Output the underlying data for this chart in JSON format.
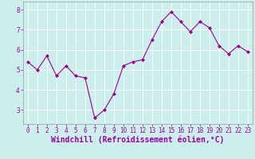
{
  "x": [
    0,
    1,
    2,
    3,
    4,
    5,
    6,
    7,
    8,
    9,
    10,
    11,
    12,
    13,
    14,
    15,
    16,
    17,
    18,
    19,
    20,
    21,
    22,
    23
  ],
  "y": [
    5.4,
    5.0,
    5.7,
    4.7,
    5.2,
    4.7,
    4.6,
    2.6,
    3.0,
    3.8,
    5.2,
    5.4,
    5.5,
    6.5,
    7.4,
    7.9,
    7.4,
    6.9,
    7.4,
    7.1,
    6.2,
    5.8,
    6.2,
    5.9
  ],
  "line_color": "#990099",
  "marker": "D",
  "marker_size": 2,
  "bg_color": "#cceeed",
  "grid_color": "#ffffff",
  "xlabel": "Windchill (Refroidissement éolien,°C)",
  "ylim": [
    2.3,
    8.4
  ],
  "xlim": [
    -0.5,
    23.5
  ],
  "yticks": [
    3,
    4,
    5,
    6,
    7,
    8
  ],
  "xticks": [
    0,
    1,
    2,
    3,
    4,
    5,
    6,
    7,
    8,
    9,
    10,
    11,
    12,
    13,
    14,
    15,
    16,
    17,
    18,
    19,
    20,
    21,
    22,
    23
  ],
  "tick_label_fontsize": 5.5,
  "xlabel_fontsize": 7.0,
  "label_color": "#9900aa"
}
